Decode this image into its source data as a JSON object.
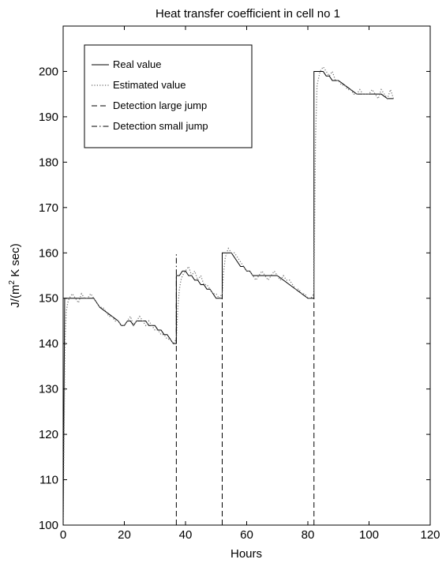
{
  "chart_data": {
    "type": "line",
    "title": "Heat transfer coefficient in cell no 1",
    "xlabel": "Hours",
    "ylabel_prefix": "J/(m",
    "ylabel_sup": "2",
    "ylabel_suffix": " K sec)",
    "xlim": [
      0,
      120
    ],
    "ylim": [
      100,
      210
    ],
    "xticks": [
      0,
      20,
      40,
      60,
      80,
      100,
      120
    ],
    "yticks": [
      100,
      110,
      120,
      130,
      140,
      150,
      160,
      170,
      180,
      190,
      200
    ],
    "grid": false,
    "legend_position": "top-left",
    "series": [
      {
        "name": "Real value",
        "style": "solid",
        "color": "#000000",
        "x": [
          0,
          0.5,
          1,
          2,
          3,
          4,
          5,
          6,
          7,
          8,
          9,
          10,
          12,
          14,
          16,
          18,
          19,
          20,
          21,
          22,
          23,
          24,
          25,
          26,
          27,
          28,
          29,
          30,
          31,
          32,
          33,
          34,
          35,
          36,
          37,
          37,
          38,
          39,
          40,
          41,
          42,
          43,
          44,
          45,
          46,
          47,
          48,
          49,
          50,
          51,
          52,
          52,
          53,
          54,
          55,
          56,
          57,
          58,
          59,
          60,
          61,
          62,
          63,
          64,
          65,
          66,
          68,
          70,
          72,
          74,
          76,
          78,
          80,
          81,
          82,
          82,
          83,
          84,
          85,
          86,
          87,
          88,
          90,
          92,
          94,
          96,
          98,
          100,
          102,
          104,
          106,
          108
        ],
        "y": [
          100,
          150,
          150,
          150,
          150,
          150,
          150,
          150,
          150,
          150,
          150,
          150,
          148,
          147,
          146,
          145,
          144,
          144,
          145,
          145,
          144,
          145,
          145,
          145,
          145,
          144,
          144,
          144,
          143,
          143,
          142,
          142,
          141,
          140,
          140,
          155,
          155,
          156,
          156,
          155,
          155,
          154,
          154,
          153,
          153,
          152,
          152,
          151,
          150,
          150,
          150,
          160,
          160,
          160,
          160,
          159,
          158,
          157,
          157,
          156,
          156,
          155,
          155,
          155,
          155,
          155,
          155,
          155,
          154,
          153,
          152,
          151,
          150,
          150,
          150,
          200,
          200,
          200,
          200,
          199,
          199,
          198,
          198,
          197,
          196,
          195,
          195,
          195,
          195,
          195,
          194,
          194
        ]
      },
      {
        "name": "Estimated value",
        "style": "dotted",
        "color": "#777777",
        "x": [
          0,
          0.3,
          0.6,
          1,
          1.5,
          2,
          3,
          4,
          5,
          6,
          7,
          8,
          9,
          10,
          11,
          12,
          13,
          14,
          15,
          16,
          17,
          18,
          19,
          20,
          21,
          22,
          23,
          24,
          25,
          26,
          27,
          28,
          29,
          30,
          31,
          32,
          33,
          34,
          35,
          36,
          37,
          37.5,
          38,
          38.5,
          39,
          40,
          41,
          42,
          43,
          44,
          45,
          46,
          47,
          48,
          49,
          50,
          51,
          52,
          52.5,
          53,
          53.5,
          54,
          55,
          56,
          57,
          58,
          59,
          60,
          61,
          62,
          63,
          64,
          65,
          66,
          67,
          68,
          69,
          70,
          71,
          72,
          73,
          74,
          75,
          76,
          77,
          78,
          79,
          80,
          81,
          82,
          82.5,
          83,
          84,
          85,
          86,
          87,
          88,
          89,
          90,
          91,
          92,
          93,
          94,
          95,
          96,
          97,
          98,
          99,
          100,
          101,
          102,
          103,
          104,
          105,
          106,
          107,
          108
        ],
        "y": [
          100,
          120,
          140,
          147,
          149,
          150,
          151,
          150,
          149,
          151,
          150,
          150,
          151,
          150,
          149,
          148,
          148,
          147,
          146,
          146,
          145,
          145,
          144,
          144,
          145,
          146,
          144,
          145,
          146,
          145,
          144,
          145,
          144,
          143,
          143,
          142,
          142,
          141,
          141,
          140,
          141,
          148,
          152,
          154,
          155,
          156,
          157,
          155,
          156,
          154,
          155,
          153,
          153,
          152,
          151,
          151,
          150,
          151,
          156,
          159,
          160,
          161,
          160,
          160,
          159,
          158,
          157,
          156,
          156,
          155,
          154,
          155,
          156,
          155,
          154,
          155,
          156,
          155,
          154,
          155,
          154,
          154,
          153,
          152,
          152,
          151,
          151,
          150,
          150,
          151,
          185,
          197,
          200,
          201,
          200,
          199,
          200,
          198,
          198,
          197,
          197,
          196,
          196,
          195,
          195,
          196,
          195,
          195,
          195,
          196,
          195,
          194,
          196,
          195,
          194,
          196,
          194
        ]
      },
      {
        "name": "Detection large jump",
        "style": "dashed",
        "color": "#000000",
        "segments": [
          {
            "x": [
              37,
              37
            ],
            "y": [
              100,
              150
            ]
          },
          {
            "x": [
              52,
              52
            ],
            "y": [
              100,
              160
            ]
          },
          {
            "x": [
              82,
              82
            ],
            "y": [
              100,
              150
            ]
          }
        ]
      },
      {
        "name": "Detection small jump",
        "style": "dashdot",
        "color": "#000000",
        "segments": [
          {
            "x": [
              37,
              37
            ],
            "y": [
              140,
              160
            ]
          }
        ]
      }
    ]
  }
}
